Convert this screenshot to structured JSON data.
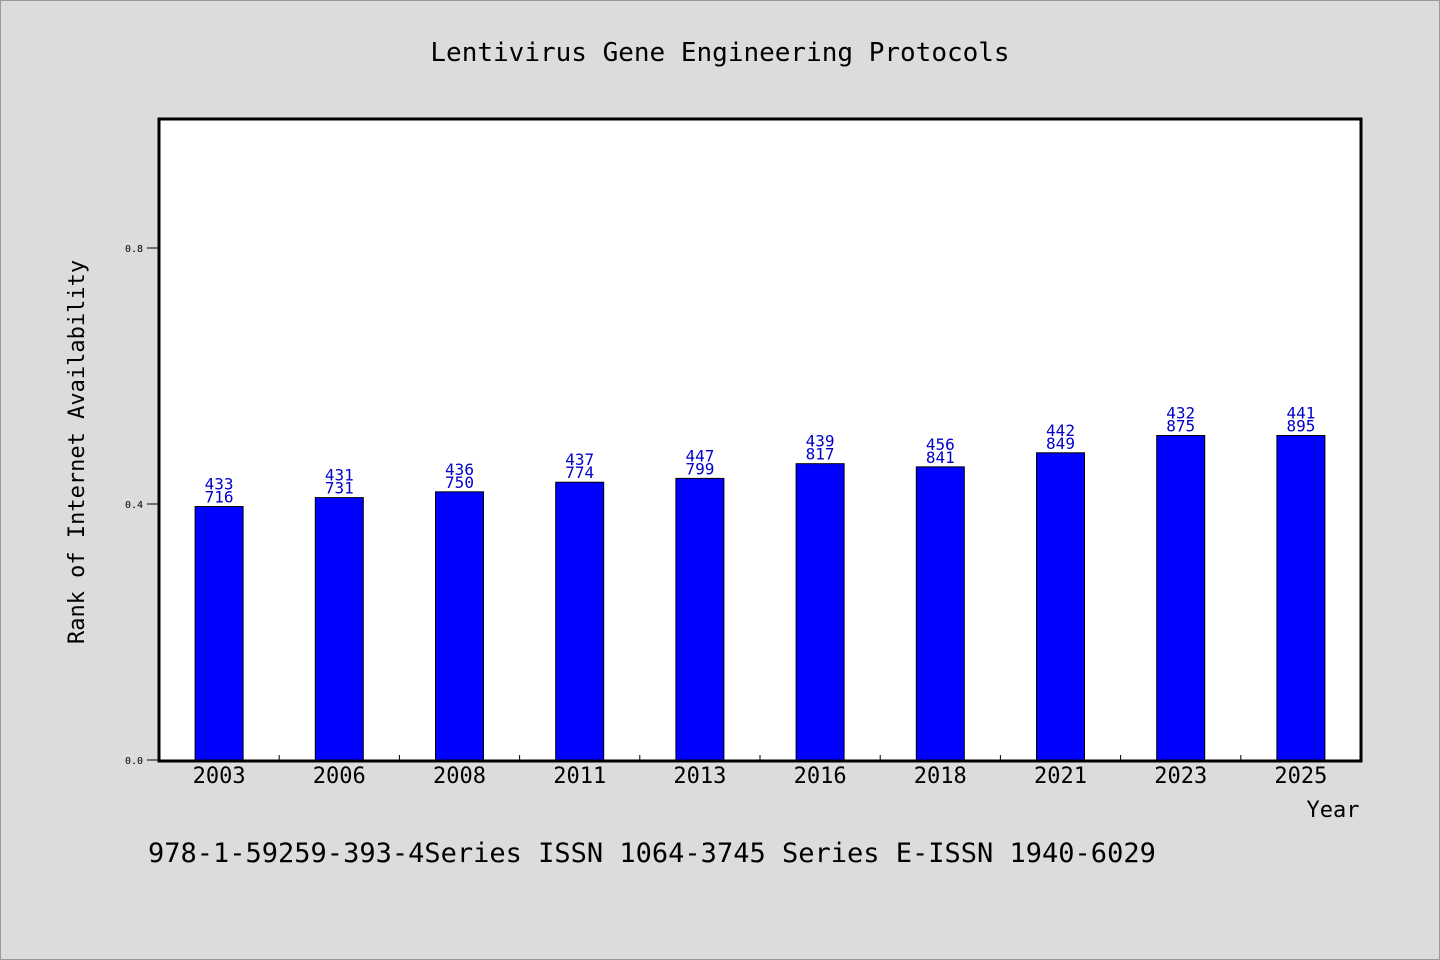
{
  "chart_data": {
    "type": "bar",
    "title": "Lentivirus Gene Engineering Protocols",
    "xlabel": "Year",
    "ylabel": "Rank of Internet Availability",
    "ylim": [
      0,
      1.0
    ],
    "yticks": [
      "0.0",
      "0.4",
      "0.8"
    ],
    "ytick_values": [
      0.0,
      0.4,
      0.8
    ],
    "grid": false,
    "bar_color": "#0000ff",
    "label_color": "#0000c8",
    "categories": [
      "2003",
      "2006",
      "2008",
      "2011",
      "2013",
      "2016",
      "2018",
      "2021",
      "2023",
      "2025"
    ],
    "values": [
      0.396,
      0.41,
      0.419,
      0.434,
      0.44,
      0.463,
      0.458,
      0.48,
      0.507,
      0.507
    ],
    "label_top": [
      "433",
      "431",
      "436",
      "437",
      "447",
      "439",
      "456",
      "442",
      "432",
      "441"
    ],
    "label_bottom": [
      "716",
      "731",
      "750",
      "774",
      "799",
      "817",
      "841",
      "849",
      "875",
      "895"
    ]
  },
  "footnote": "978-1-59259-393-4Series ISSN 1064-3745 Series E-ISSN 1940-6029"
}
